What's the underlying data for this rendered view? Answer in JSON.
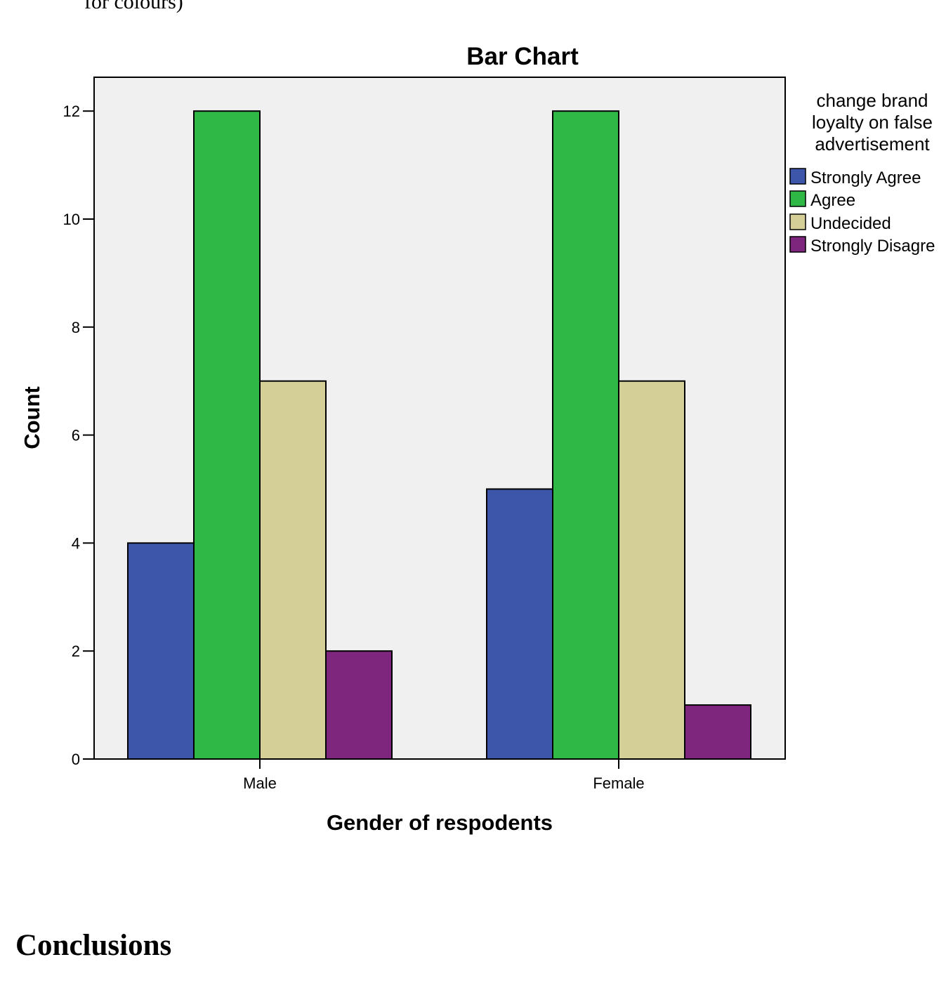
{
  "document": {
    "fragment_text": "for colours)",
    "section_heading": "Conclusions"
  },
  "chart_data": {
    "type": "bar",
    "title": "Bar Chart",
    "xlabel": "Gender of respodents",
    "ylabel": "Count",
    "categories": [
      "Male",
      "Female"
    ],
    "ylim": [
      0,
      12.6
    ],
    "yticks": [
      0,
      2,
      4,
      6,
      8,
      10,
      12
    ],
    "grid": false,
    "legend": {
      "title": [
        "change brand",
        "loyalty on false",
        "advertisement"
      ],
      "placement": "right"
    },
    "series": [
      {
        "name": "Strongly Agree",
        "values": [
          4,
          5
        ],
        "color": "#3d56aa"
      },
      {
        "name": "Agree",
        "values": [
          12,
          12
        ],
        "color": "#2fb845"
      },
      {
        "name": "Undecided",
        "values": [
          7,
          7
        ],
        "color": "#d4cf96"
      },
      {
        "name": "Strongly Disagre",
        "values": [
          2,
          1
        ],
        "color": "#7e257d"
      }
    ],
    "plot_background": "#f0f0f0"
  }
}
